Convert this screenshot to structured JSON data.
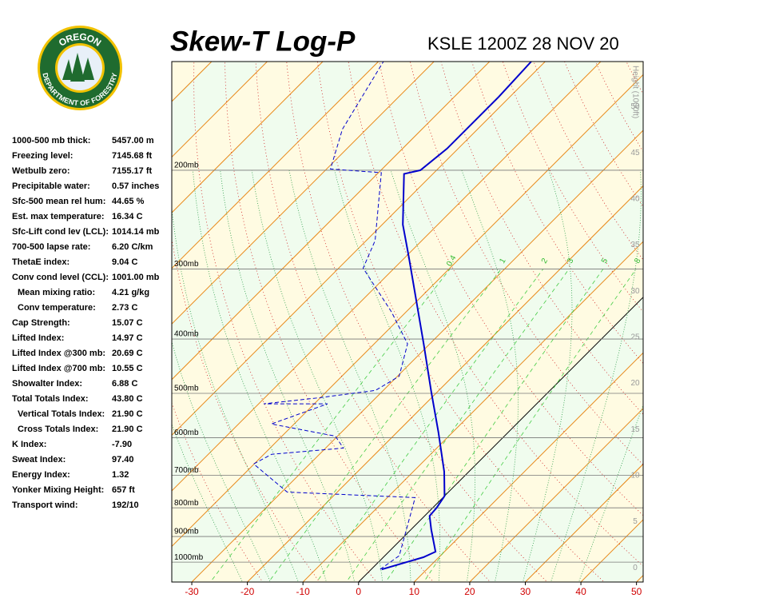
{
  "logo": {
    "top": "OREGON",
    "bottom": "DEPARTMENT OF FORESTRY"
  },
  "indices": [
    {
      "label": "1000-500 mb thick:",
      "value": "5457.00 m"
    },
    {
      "label": "Freezing level:",
      "value": "7145.68 ft"
    },
    {
      "label": "Wetbulb zero:",
      "value": "7155.17 ft"
    },
    {
      "label": "Precipitable water:",
      "value": "0.57 inches"
    },
    {
      "label": "Sfc-500 mean rel hum:",
      "value": "44.65 %"
    },
    {
      "label": "Est. max temperature:",
      "value": "16.34 C"
    },
    {
      "label": "Sfc-Lift cond lev (LCL):",
      "value": "1014.14 mb"
    },
    {
      "label": "700-500 lapse rate:",
      "value": "6.20 C/km"
    },
    {
      "label": "ThetaE index:",
      "value": "9.04 C"
    },
    {
      "label": "Conv cond level (CCL):",
      "value": "1001.00 mb"
    },
    {
      "label": "Mean mixing ratio:",
      "value": "4.21 g/kg",
      "indent": true
    },
    {
      "label": "Conv temperature:",
      "value": "2.73 C",
      "indent": true
    },
    {
      "label": "Cap Strength:",
      "value": "15.07 C"
    },
    {
      "label": "Lifted Index:",
      "value": "14.97 C"
    },
    {
      "label": "Lifted Index @300 mb:",
      "value": "20.69 C"
    },
    {
      "label": "Lifted Index @700 mb:",
      "value": "10.55 C"
    },
    {
      "label": "Showalter Index:",
      "value": "6.88 C"
    },
    {
      "label": "Total Totals Index:",
      "value": "43.80 C"
    },
    {
      "label": "Vertical Totals Index:",
      "value": "21.90 C",
      "indent": true
    },
    {
      "label": "Cross Totals Index:",
      "value": "21.90 C",
      "indent": true
    },
    {
      "label": "K Index:",
      "value": "-7.90"
    },
    {
      "label": "Sweat Index:",
      "value": "97.40"
    },
    {
      "label": "Energy Index:",
      "value": "1.32"
    },
    {
      "label": "Yonker Mixing Height:",
      "value": "657 ft"
    },
    {
      "label": "Transport wind:",
      "value": "192/10"
    }
  ],
  "chart_data": {
    "type": "skewt",
    "title": "Skew-T Log-P",
    "subtitle": "KSLE 1200Z 28 NOV 20",
    "y2label": "Height (1000ft)",
    "xlim": [
      -33.6,
      51.2
    ],
    "xticks": [
      -30,
      -20,
      -10,
      0,
      10,
      20,
      30,
      40,
      50
    ],
    "ylim": [
      1085,
      128
    ],
    "yticks": [
      {
        "value": 1000,
        "label": "1000mb"
      },
      {
        "value": 900,
        "label": "900mb"
      },
      {
        "value": 800,
        "label": "800mb"
      },
      {
        "value": 700,
        "label": "700mb"
      },
      {
        "value": 600,
        "label": "600mb"
      },
      {
        "value": 500,
        "label": "500mb"
      },
      {
        "value": 400,
        "label": "400mb"
      },
      {
        "value": 300,
        "label": "300mb"
      },
      {
        "value": 200,
        "label": "200mb"
      }
    ],
    "y2lim": [
      -1.55,
      54.9
    ],
    "y2ticks": [
      0,
      5,
      10,
      15,
      20,
      25,
      30,
      35,
      40,
      45,
      50
    ],
    "grid": true,
    "mixing_ratio_labels": [
      {
        "value": 0.4,
        "label": "0.4"
      },
      1,
      2,
      3,
      5,
      8
    ],
    "series": [
      {
        "color": "#0000cc",
        "style": "solid",
        "temperature": [
          1.9,
          7.2,
          8.4,
          3.6,
          0.9,
          0.7,
          0.0,
          -4.4,
          -12.6,
          -21.1,
          -31.1,
          -49.5,
          -56.3,
          -65.2,
          -62.9,
          -62.0,
          -62.0,
          -62.5
        ],
        "pressure": [
          1030,
          980,
          958,
          874,
          827,
          800,
          762,
          690,
          586,
          497,
          408,
          285,
          250,
          203,
          200,
          183,
          148,
          128
        ]
      },
      {
        "color": "#0000cc",
        "style": "dashed",
        "temperature": [
          1.6,
          2.6,
          -5.0,
          -29.0,
          -40.1,
          -38.6,
          -26.8,
          -30.4,
          -44.1,
          -37.6,
          -49.1,
          -40.2,
          -31.4,
          -29.7,
          -34.0,
          -42.6,
          -55.6,
          -58.4,
          -69.5,
          -79.3,
          -84.3,
          -89.1
        ],
        "pressure": [
          1030,
          974,
          767,
          750,
          668,
          642,
          626,
          596,
          567,
          522,
          522,
          509,
          494,
          466,
          408,
          358,
          299,
          267,
          202,
          199,
          169,
          128
        ]
      }
    ]
  }
}
